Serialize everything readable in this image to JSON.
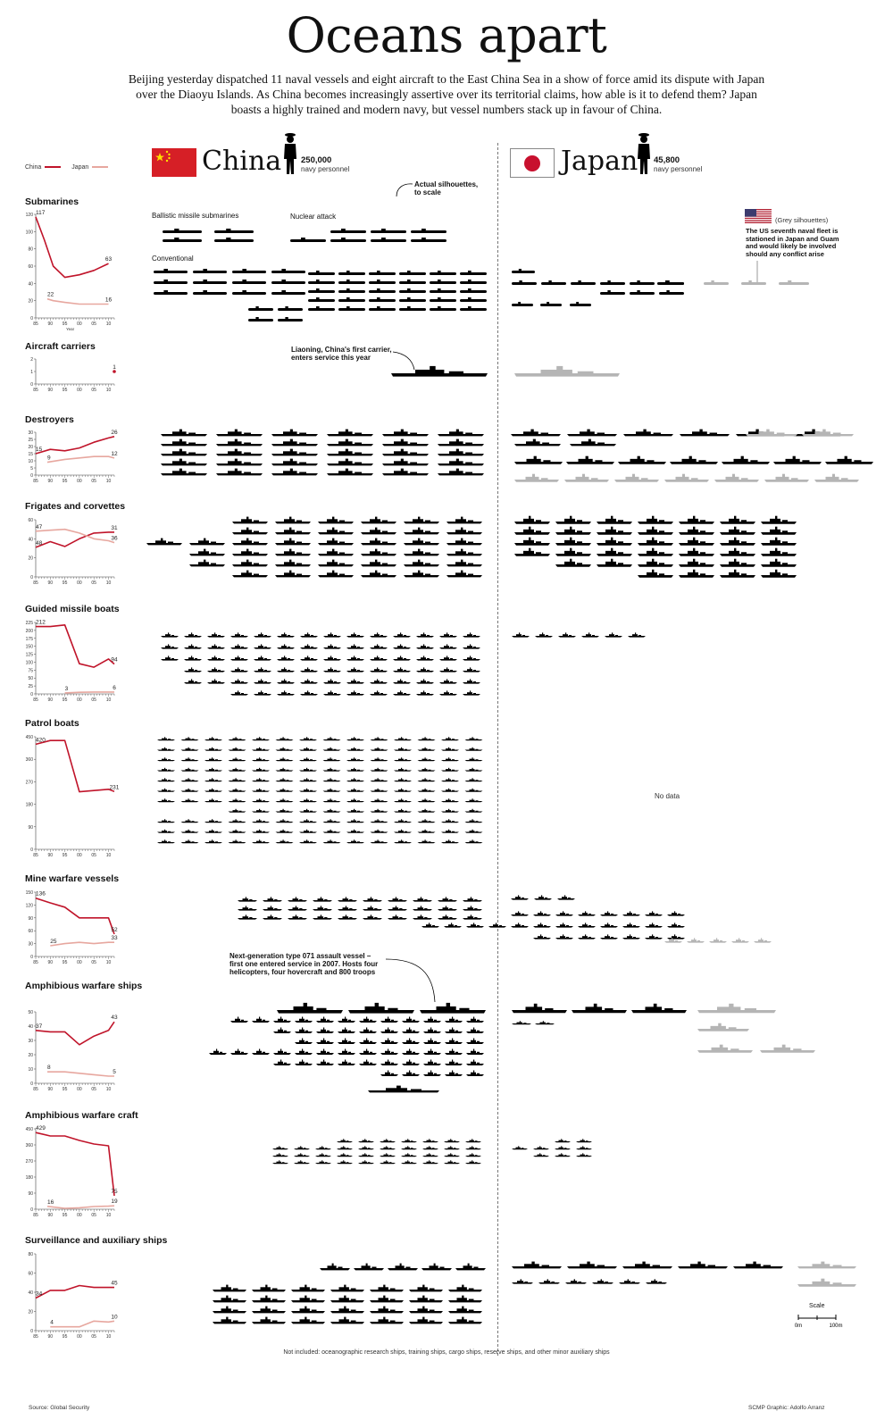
{
  "title": "Oceans apart",
  "intro": "Beijing yesterday dispatched 11 naval vessels and eight aircraft to the East China Sea in a show of force amid its dispute with Japan over the Diaoyu Islands. As China becomes increasingly assertive over its territorial claims, how able is it to defend them? Japan boasts a highly trained and modern navy, but vessel numbers stack up in favour of China.",
  "legend": {
    "china": "China",
    "japan": "Japan"
  },
  "colors": {
    "china": "#c0142a",
    "japan": "#e7a79f",
    "ship": "#000000",
    "us_ship": "#b5b5b5"
  },
  "china": {
    "name": "China",
    "personnel": "250,000",
    "personnel_label": "navy personnel"
  },
  "japan": {
    "name": "Japan",
    "personnel": "45,800",
    "personnel_label": "navy personnel"
  },
  "annotations": {
    "actual_silhouettes": "Actual silhouettes, to scale",
    "ballistic": "Ballistic missile submarines",
    "nuclear": "Nuclear attack",
    "conventional": "Conventional",
    "liaoning": "Liaoning, China's first carrier, enters service this year",
    "type071": "Next-generation type 071 assault vessel – first one entered service in 2007. Hosts four helicopters, four hovercraft and 800 troops",
    "grey": "(Grey silhouettes)",
    "us_fleet": "The US seventh naval fleet is stationed in Japan and Guam and would likely be involved should any conflict arise",
    "no_data": "No data"
  },
  "footer": {
    "not_included": "Not included: oceanographic research ships, training ships, cargo ships, reserve ships, and other minor auxiliary ships",
    "source": "Source: Global Security",
    "credit": "SCMP Graphic: Adolfo Arranz",
    "scale": "Scale",
    "scale_0": "0m",
    "scale_100": "100m"
  },
  "chart_data": [
    {
      "type": "line",
      "title": "Submarines",
      "x": [
        1985,
        1990,
        1995,
        2000,
        2005,
        2010
      ],
      "x_ticks": [
        "85",
        "90",
        "95",
        "00",
        "05",
        "10"
      ],
      "xlabel": "Year",
      "ylim": [
        0,
        120
      ],
      "y_ticks": [
        0,
        20,
        40,
        60,
        80,
        100,
        120
      ],
      "series": [
        {
          "name": "China",
          "x": [
            1985,
            1988,
            1991,
            1995,
            2000,
            2005,
            2010
          ],
          "values": [
            117,
            90,
            60,
            47,
            50,
            55,
            63
          ]
        },
        {
          "name": "Japan",
          "x": [
            1989,
            1991,
            1995,
            2000,
            2005,
            2010
          ],
          "values": [
            22,
            20,
            18,
            16,
            16,
            16
          ]
        }
      ],
      "data_labels": [
        "117",
        "63",
        "22",
        "16"
      ]
    },
    {
      "type": "scatter",
      "title": "Aircraft carriers",
      "x_ticks": [
        "85",
        "90",
        "95",
        "00",
        "05",
        "10"
      ],
      "ylim": [
        0,
        2
      ],
      "y_ticks": [
        0,
        1,
        2
      ],
      "series": [
        {
          "name": "China",
          "x": [
            2012
          ],
          "values": [
            1
          ]
        }
      ],
      "data_labels": [
        "1"
      ]
    },
    {
      "type": "line",
      "title": "Destroyers",
      "x_ticks": [
        "85",
        "90",
        "95",
        "00",
        "05",
        "10"
      ],
      "ylim": [
        0,
        30
      ],
      "y_ticks": [
        0,
        5,
        10,
        15,
        20,
        25,
        30
      ],
      "series": [
        {
          "name": "China",
          "x": [
            1985,
            1990,
            1995,
            2000,
            2005,
            2010,
            2012
          ],
          "values": [
            15,
            18,
            17,
            19,
            23,
            26,
            27
          ]
        },
        {
          "name": "Japan",
          "x": [
            1989,
            1995,
            2000,
            2005,
            2010,
            2012
          ],
          "values": [
            9,
            11,
            12,
            13,
            13,
            12
          ]
        }
      ],
      "data_labels": [
        "15",
        "26",
        "9",
        "12"
      ]
    },
    {
      "type": "line",
      "title": "Frigates and corvettes",
      "x_ticks": [
        "85",
        "90",
        "95",
        "00",
        "05",
        "10"
      ],
      "ylim": [
        0,
        60
      ],
      "y_ticks": [
        0,
        20,
        40,
        60
      ],
      "series": [
        {
          "name": "China",
          "x": [
            1985,
            1990,
            1995,
            2000,
            2005,
            2010,
            2012
          ],
          "values": [
            31,
            37,
            32,
            40,
            46,
            47,
            47
          ]
        },
        {
          "name": "Japan",
          "x": [
            1985,
            1990,
            1995,
            2000,
            2005,
            2010,
            2012
          ],
          "values": [
            48,
            49,
            50,
            46,
            40,
            38,
            36
          ]
        }
      ],
      "data_labels": [
        "48",
        "31",
        "47",
        "36"
      ]
    },
    {
      "type": "line",
      "title": "Guided missile boats",
      "x_ticks": [
        "85",
        "90",
        "95",
        "00",
        "05",
        "10"
      ],
      "ylim": [
        0,
        225
      ],
      "y_ticks": [
        0,
        25,
        50,
        75,
        100,
        125,
        150,
        175,
        200,
        225
      ],
      "series": [
        {
          "name": "China",
          "x": [
            1985,
            1990,
            1995,
            2000,
            2005,
            2010,
            2012
          ],
          "values": [
            212,
            212,
            217,
            95,
            84,
            110,
            94
          ]
        },
        {
          "name": "Japan",
          "x": [
            1995,
            2000,
            2005,
            2010,
            2012
          ],
          "values": [
            3,
            5,
            6,
            6,
            6
          ]
        }
      ],
      "data_labels": [
        "212",
        "94",
        "3",
        "6"
      ]
    },
    {
      "type": "line",
      "title": "Patrol boats",
      "x_ticks": [
        "85",
        "90",
        "95",
        "00",
        "05",
        "10"
      ],
      "ylim": [
        0,
        450
      ],
      "y_ticks": [
        0,
        90,
        180,
        270,
        360,
        450
      ],
      "series": [
        {
          "name": "China",
          "x": [
            1985,
            1990,
            1995,
            2000,
            2005,
            2010,
            2012
          ],
          "values": [
            420,
            435,
            435,
            230,
            235,
            240,
            231
          ]
        }
      ],
      "data_labels": [
        "420",
        "231"
      ]
    },
    {
      "type": "line",
      "title": "Mine warfare vessels",
      "x_ticks": [
        "85",
        "90",
        "95",
        "00",
        "05",
        "10"
      ],
      "ylim": [
        0,
        150
      ],
      "y_ticks": [
        0,
        30,
        60,
        90,
        120,
        150
      ],
      "series": [
        {
          "name": "China",
          "x": [
            1985,
            1990,
            1995,
            2000,
            2005,
            2010,
            2012
          ],
          "values": [
            136,
            125,
            115,
            90,
            90,
            90,
            52
          ]
        },
        {
          "name": "Japan",
          "x": [
            1990,
            1995,
            2000,
            2005,
            2010,
            2012
          ],
          "values": [
            25,
            30,
            33,
            30,
            33,
            33
          ]
        }
      ],
      "data_labels": [
        "136",
        "52",
        "25",
        "33"
      ]
    },
    {
      "type": "line",
      "title": "Amphibious warfare ships",
      "x_ticks": [
        "85",
        "90",
        "95",
        "00",
        "05",
        "10"
      ],
      "ylim": [
        0,
        50
      ],
      "y_ticks": [
        0,
        10,
        20,
        30,
        40,
        50
      ],
      "series": [
        {
          "name": "China",
          "x": [
            1985,
            1990,
            1995,
            2000,
            2005,
            2010,
            2012
          ],
          "values": [
            37,
            36,
            36,
            27,
            33,
            37,
            43
          ]
        },
        {
          "name": "Japan",
          "x": [
            1989,
            1995,
            2000,
            2005,
            2010,
            2012
          ],
          "values": [
            8,
            8,
            7,
            6,
            5,
            5
          ]
        }
      ],
      "data_labels": [
        "37",
        "43",
        "8",
        "5"
      ]
    },
    {
      "type": "line",
      "title": "Amphibious warfare craft",
      "x_ticks": [
        "85",
        "90",
        "95",
        "00",
        "05",
        "10"
      ],
      "ylim": [
        0,
        450
      ],
      "y_ticks": [
        0,
        90,
        180,
        270,
        360,
        450
      ],
      "series": [
        {
          "name": "China",
          "x": [
            1985,
            1990,
            1995,
            2000,
            2005,
            2010,
            2012
          ],
          "values": [
            429,
            410,
            410,
            385,
            365,
            355,
            75
          ]
        },
        {
          "name": "Japan",
          "x": [
            1989,
            1995,
            2000,
            2005,
            2010,
            2012
          ],
          "values": [
            16,
            5,
            8,
            15,
            17,
            19
          ]
        }
      ],
      "data_labels": [
        "429",
        "75",
        "16",
        "19"
      ]
    },
    {
      "type": "line",
      "title": "Surveillance and auxiliary ships",
      "x_ticks": [
        "85",
        "90",
        "95",
        "00",
        "05",
        "10"
      ],
      "ylim": [
        0,
        80
      ],
      "y_ticks": [
        0,
        20,
        40,
        60,
        80
      ],
      "series": [
        {
          "name": "China",
          "x": [
            1985,
            1990,
            1995,
            2000,
            2005,
            2010,
            2012
          ],
          "values": [
            34,
            42,
            42,
            47,
            45,
            45,
            45
          ]
        },
        {
          "name": "Japan",
          "x": [
            1990,
            1995,
            2000,
            2005,
            2010,
            2012
          ],
          "values": [
            4,
            4,
            4,
            10,
            9,
            10
          ]
        }
      ],
      "data_labels": [
        "34",
        "45",
        "4",
        "10"
      ]
    }
  ]
}
